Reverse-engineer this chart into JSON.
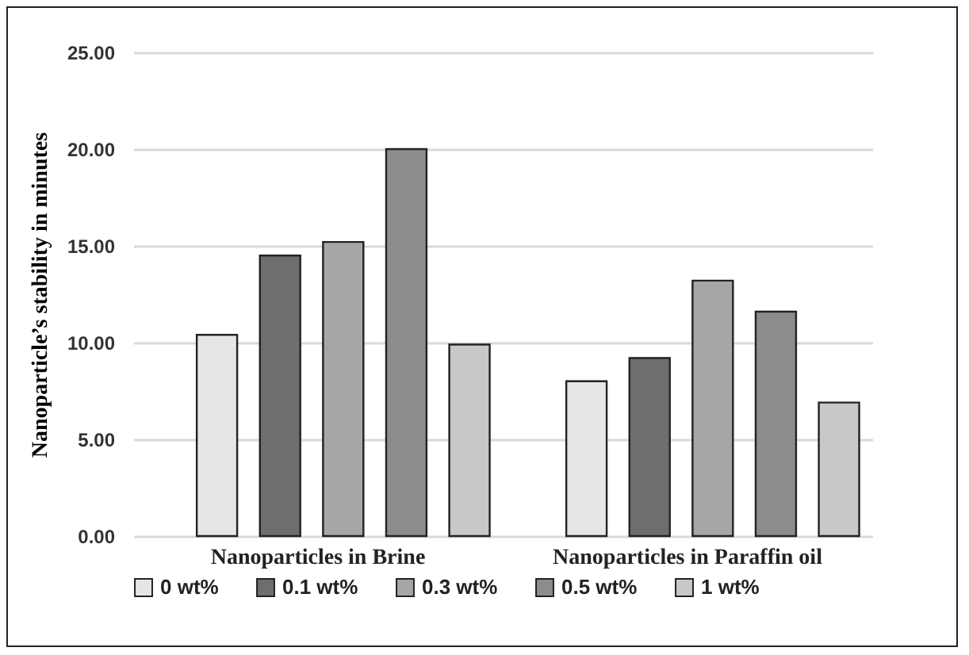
{
  "chart_data": {
    "type": "bar",
    "ylabel": "Nanoparticle’s stability in minutes",
    "categories": [
      "Nanoparticles in Brine",
      "Nanoparticles in Paraffin oil"
    ],
    "series": [
      {
        "name": "0 wt%",
        "color": "#e6e6e6",
        "values": [
          10.4,
          8.0
        ]
      },
      {
        "name": "0.1 wt%",
        "color": "#6e6e6e",
        "values": [
          14.5,
          9.2
        ]
      },
      {
        "name": "0.3 wt%",
        "color": "#a6a6a6",
        "values": [
          15.2,
          13.2
        ]
      },
      {
        "name": "0.5 wt%",
        "color": "#8c8c8c",
        "values": [
          20.0,
          11.6
        ]
      },
      {
        "name": "1 wt%",
        "color": "#c8c8c8",
        "values": [
          9.9,
          6.9
        ]
      }
    ],
    "ylim": [
      0,
      25
    ],
    "yticks": [
      {
        "value": 0,
        "label": "0.00"
      },
      {
        "value": 5,
        "label": "5.00"
      },
      {
        "value": 10,
        "label": "10.00"
      },
      {
        "value": 15,
        "label": "15.00"
      },
      {
        "value": 20,
        "label": "20.00"
      },
      {
        "value": 25,
        "label": "25.00"
      }
    ],
    "grid": "y",
    "legend": "bottom"
  }
}
